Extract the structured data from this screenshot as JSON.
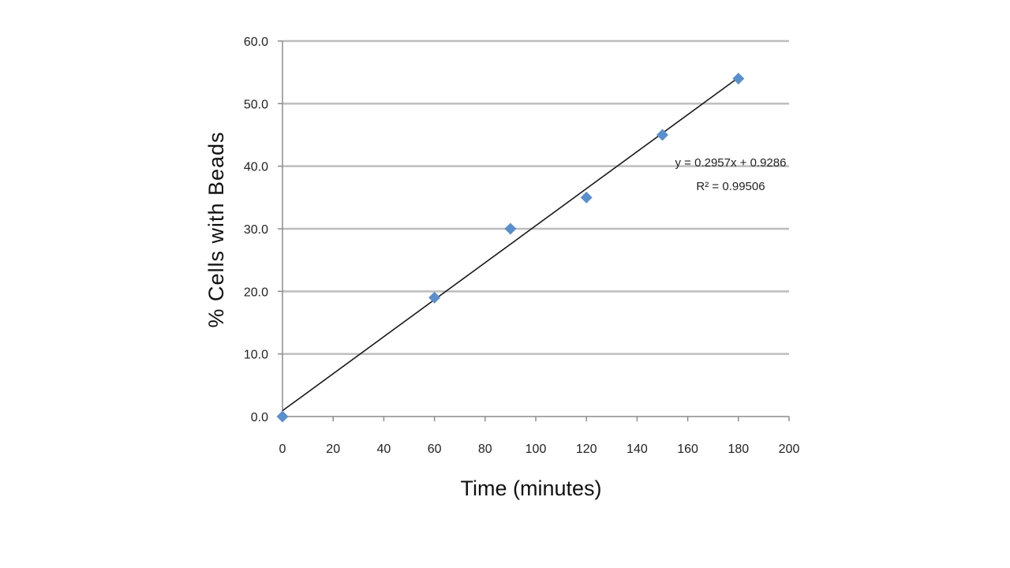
{
  "chart_data": {
    "type": "scatter",
    "title": "",
    "xlabel": "Time (minutes)",
    "ylabel": "% Cells with Beads",
    "xlim": [
      0,
      200
    ],
    "ylim": [
      0,
      60
    ],
    "x_ticks": [
      0,
      20,
      40,
      60,
      80,
      100,
      120,
      140,
      160,
      180,
      200
    ],
    "y_ticks": [
      "0.0",
      "10.0",
      "20.0",
      "30.0",
      "40.0",
      "50.0",
      "60.0"
    ],
    "grid": "horizontal",
    "marker_color": "#5b8fc9",
    "series": [
      {
        "marker": "diamond",
        "x": [
          0,
          60,
          90,
          120,
          150,
          180
        ],
        "y": [
          0,
          19,
          30,
          35,
          45,
          54
        ]
      }
    ],
    "trendline": {
      "type": "linear",
      "slope": 0.2957,
      "intercept": 0.9286,
      "equation_label": "y = 0.2957x + 0.9286",
      "r2_label": "R² = 0.99506"
    }
  }
}
